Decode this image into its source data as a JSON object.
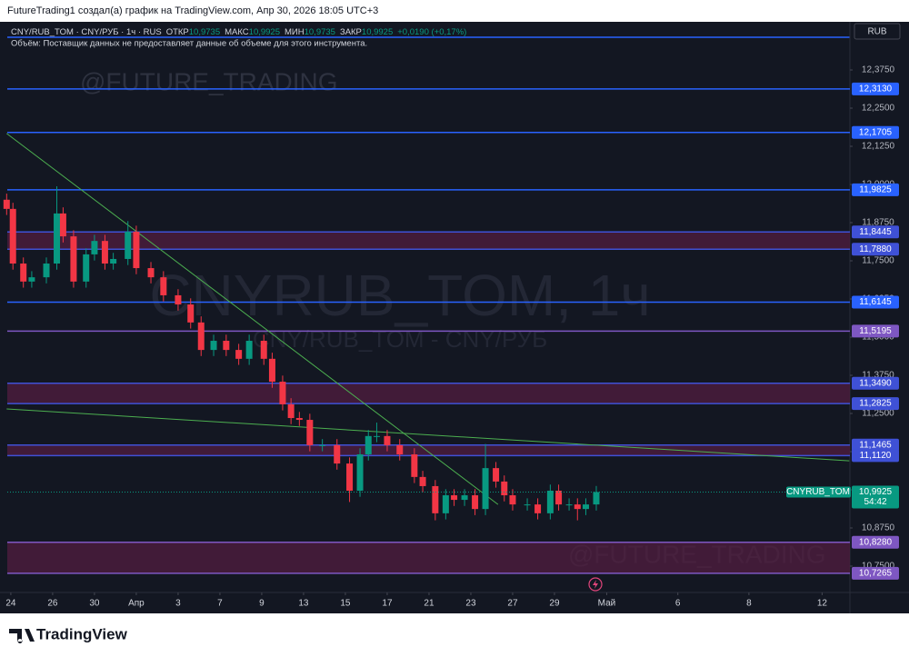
{
  "chart_data": {
    "type": "candlestick",
    "attribution": "FutureTrading1 создал(а) график на TradingView.com, Апр 30, 2026 18:05 UTC+3",
    "title": "CNY/RUB_TOM · CNY/РУБ · 1ч · RUS",
    "ohlc_legend": [
      {
        "label": "ОТКР",
        "text": "10,9735"
      },
      {
        "label": "МАКС",
        "text": "10,9925"
      },
      {
        "label": "МИН",
        "text": "10,9735"
      },
      {
        "label": "ЗАКР",
        "text": "10,9925"
      }
    ],
    "change": "+0,0190 (+0,17%)",
    "volume_note": "Объём: Поставщик данных не предоставляет данные об объеме для этого инструмента.",
    "currency": "RUB",
    "watermark": "CNYRUB_TOM, 1ч",
    "watermark_subtitle": "CNY/RUB_TOM - CNY/РУБ",
    "signature": "@FUTURE_TRADING",
    "brand": "TradingView",
    "up_color": "#089981",
    "down_color": "#f23645",
    "xlim": [
      -0.17,
      40.13
    ],
    "xticks": [
      {
        "value": 0,
        "label": "24"
      },
      {
        "value": 2,
        "label": "26"
      },
      {
        "value": 4,
        "label": "30"
      },
      {
        "value": 6,
        "label": "Апр"
      },
      {
        "value": 8,
        "label": "3"
      },
      {
        "value": 10,
        "label": "7"
      },
      {
        "value": 12,
        "label": "9"
      },
      {
        "value": 14,
        "label": "13"
      },
      {
        "value": 16,
        "label": "15"
      },
      {
        "value": 18,
        "label": "17"
      },
      {
        "value": 20,
        "label": "21"
      },
      {
        "value": 22,
        "label": "23"
      },
      {
        "value": 24,
        "label": "27"
      },
      {
        "value": 26,
        "label": "29"
      },
      {
        "value": 28.5,
        "label": "Май"
      },
      {
        "value": 31.9,
        "label": "6"
      },
      {
        "value": 35.3,
        "label": "8"
      },
      {
        "value": 38.8,
        "label": "12"
      }
    ],
    "ylim": [
      10.6696,
      12.5208
    ],
    "yticks": [
      {
        "value": 12.375,
        "label": "12,3750"
      },
      {
        "value": 12.25,
        "label": "12,2500"
      },
      {
        "value": 12.125,
        "label": "12,1250"
      },
      {
        "value": 12.0,
        "label": "12,0000"
      },
      {
        "value": 11.875,
        "label": "11,8750"
      },
      {
        "value": 11.75,
        "label": "11,7500"
      },
      {
        "value": 11.625,
        "label": "11,6250"
      },
      {
        "value": 11.5,
        "label": "11,5000"
      },
      {
        "value": 11.375,
        "label": "11,3750"
      },
      {
        "value": 11.25,
        "label": "11,2500"
      },
      {
        "value": 11.125,
        "label": "11,1250"
      },
      {
        "value": 11.0,
        "label": "11,0000"
      },
      {
        "value": 10.875,
        "label": "10,8750"
      },
      {
        "value": 10.75,
        "label": "10,7500"
      }
    ],
    "levels": [
      {
        "value": 12.313,
        "label": "12,3130",
        "color": "#2962ff"
      },
      {
        "value": 12.1705,
        "label": "12,1705",
        "color": "#2962ff"
      },
      {
        "value": 11.9825,
        "label": "11,9825",
        "color": "#2962ff"
      },
      {
        "value": 11.8445,
        "label": "11,8445",
        "color": "#3f51d6",
        "band_color": "#4a1c3c"
      },
      {
        "value": 11.788,
        "label": "11,7880",
        "color": "#3f51d6"
      },
      {
        "value": 11.6145,
        "label": "11,6145",
        "color": "#2962ff"
      },
      {
        "value": 11.5195,
        "label": "11,5195",
        "color": "#7e57c2"
      },
      {
        "value": 11.349,
        "label": "11,3490",
        "color": "#3f51d6",
        "band_color": "#4a1c3c"
      },
      {
        "value": 11.2825,
        "label": "11,2825",
        "color": "#3f51d6"
      },
      {
        "value": 11.1465,
        "label": "11,1465",
        "color": "#3f51d6",
        "band_color": "#4a1c3c"
      },
      {
        "value": 11.112,
        "label": "11,1120",
        "color": "#3f51d6"
      },
      {
        "value": 10.828,
        "label": "10,8280",
        "color": "#7e57c2",
        "band_color": "#4a1c3c"
      },
      {
        "value": 10.7265,
        "label": "10,7265",
        "color": "#7e57c2"
      }
    ],
    "trendlines": [
      {
        "x": [
          -0.2,
          23.3
        ],
        "y": [
          12.167,
          10.952
        ],
        "color": "#4caf50"
      },
      {
        "x": [
          -0.2,
          40.1
        ],
        "y": [
          11.265,
          11.095
        ],
        "color": "#4caf50"
      }
    ],
    "last_price": {
      "value": 10.9925,
      "label": "10,9925"
    },
    "last_symbol": "CNYRUB_TOM",
    "countdown": "54:42",
    "x": [
      -0.2,
      0.1,
      0.6,
      1.0,
      1.7,
      2.2,
      2.5,
      3.0,
      3.6,
      4.0,
      4.5,
      4.9,
      5.6,
      6.0,
      6.7,
      7.3,
      8.0,
      8.6,
      9.1,
      9.7,
      10.3,
      10.9,
      11.4,
      12.1,
      12.5,
      13.0,
      13.4,
      13.8,
      14.3,
      14.9,
      15.6,
      16.2,
      16.7,
      17.1,
      17.5,
      18.0,
      18.6,
      19.3,
      19.7,
      20.3,
      20.8,
      21.2,
      21.7,
      22.2,
      22.7,
      23.2,
      23.6,
      24.0,
      24.7,
      25.2,
      25.8,
      26.2,
      26.7,
      27.1,
      27.5,
      28.0
    ],
    "open": [
      11.95,
      11.92,
      11.741,
      11.682,
      11.696,
      11.741,
      11.905,
      11.83,
      11.682,
      11.771,
      11.815,
      11.741,
      11.756,
      11.845,
      11.726,
      11.696,
      11.637,
      11.607,
      11.548,
      11.458,
      11.488,
      11.458,
      11.429,
      11.488,
      11.429,
      11.354,
      11.28,
      11.235,
      11.229,
      11.146,
      11.146,
      11.086,
      10.997,
      11.116,
      11.176,
      11.176,
      11.146,
      11.116,
      11.042,
      11.012,
      10.923,
      10.982,
      10.967,
      10.982,
      10.937,
      11.071,
      11.027,
      10.982,
      10.952,
      10.952,
      10.923,
      10.997,
      10.952,
      10.952,
      10.937,
      10.952
    ],
    "high": [
      11.97,
      11.94,
      11.761,
      11.716,
      11.761,
      11.994,
      11.925,
      11.85,
      11.791,
      11.835,
      11.835,
      11.776,
      11.88,
      11.865,
      11.746,
      11.716,
      11.657,
      11.627,
      11.568,
      11.508,
      11.508,
      11.478,
      11.508,
      11.508,
      11.449,
      11.374,
      11.3,
      11.255,
      11.249,
      11.166,
      11.166,
      11.106,
      11.136,
      11.196,
      11.22,
      11.196,
      11.166,
      11.136,
      11.062,
      11.032,
      11.002,
      11.002,
      11.002,
      11.002,
      11.15,
      11.091,
      11.047,
      11.002,
      10.972,
      10.972,
      11.017,
      11.017,
      10.972,
      10.972,
      10.972,
      11.0125
    ],
    "low": [
      11.9,
      11.721,
      11.662,
      11.662,
      11.676,
      11.721,
      11.81,
      11.662,
      11.662,
      11.751,
      11.721,
      11.721,
      11.736,
      11.706,
      11.676,
      11.617,
      11.587,
      11.528,
      11.438,
      11.438,
      11.438,
      11.409,
      11.409,
      11.409,
      11.334,
      11.26,
      11.215,
      11.209,
      11.126,
      11.126,
      11.066,
      10.96,
      10.977,
      11.096,
      11.156,
      11.126,
      11.096,
      11.022,
      10.992,
      10.9,
      10.903,
      10.947,
      10.947,
      10.917,
      10.917,
      11.007,
      10.962,
      10.932,
      10.932,
      10.903,
      10.903,
      10.932,
      10.932,
      10.9,
      10.917,
      10.932
    ],
    "close": [
      11.92,
      11.741,
      11.682,
      11.696,
      11.741,
      11.905,
      11.83,
      11.682,
      11.771,
      11.815,
      11.741,
      11.756,
      11.845,
      11.726,
      11.696,
      11.637,
      11.607,
      11.548,
      11.458,
      11.488,
      11.458,
      11.429,
      11.488,
      11.429,
      11.354,
      11.28,
      11.235,
      11.229,
      11.146,
      11.146,
      11.086,
      10.997,
      11.116,
      11.176,
      11.176,
      11.146,
      11.116,
      11.042,
      11.012,
      10.923,
      10.982,
      10.967,
      10.982,
      10.937,
      11.071,
      11.027,
      10.982,
      10.952,
      10.952,
      10.923,
      10.997,
      10.952,
      10.952,
      10.937,
      10.952,
      10.9925
    ]
  }
}
